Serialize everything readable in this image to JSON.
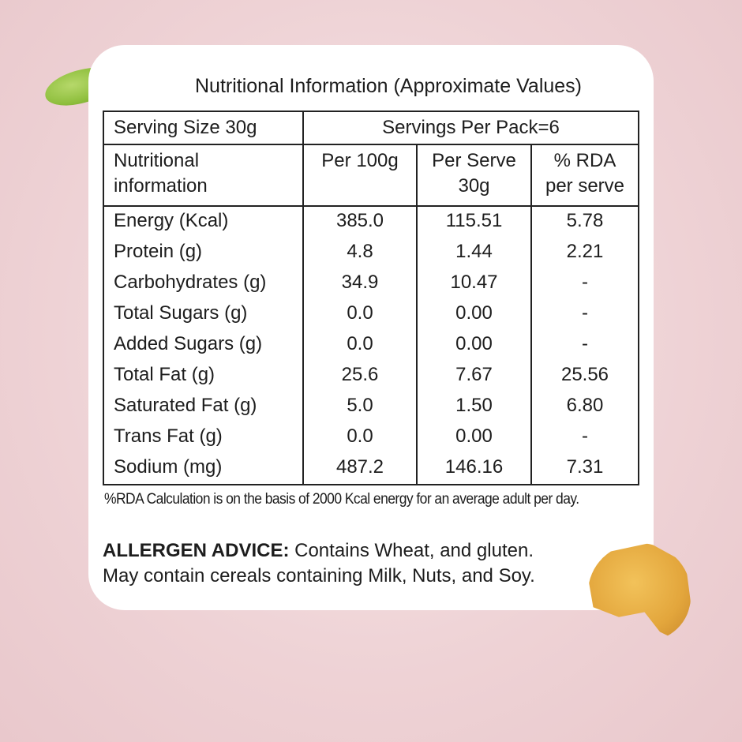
{
  "title": "Nutritional Information (Approximate Values)",
  "serving_size": "Serving Size 30g",
  "servings_per_pack": "Servings Per Pack=6",
  "headers": [
    "Nutritional information",
    "Per 100g",
    "Per Serve 30g",
    "% RDA per serve"
  ],
  "rows": [
    [
      "Energy (Kcal)",
      "385.0",
      "115.51",
      "5.78"
    ],
    [
      "Protein (g)",
      "4.8",
      "1.44",
      "2.21"
    ],
    [
      "Carbohydrates (g)",
      "34.9",
      "10.47",
      "-"
    ],
    [
      "Total  Sugars (g)",
      "0.0",
      "0.00",
      "-"
    ],
    [
      "Added Sugars (g)",
      "0.0",
      "0.00",
      "-"
    ],
    [
      "Total Fat (g)",
      "25.6",
      "7.67",
      "25.56"
    ],
    [
      "Saturated Fat (g)",
      "5.0",
      "1.50",
      "6.80"
    ],
    [
      "Trans Fat (g)",
      "0.0",
      "0.00",
      "-"
    ],
    [
      "Sodium (mg)",
      "487.2",
      "146.16",
      "7.31"
    ]
  ],
  "note": "%RDA Calculation is on the basis of 2000 Kcal energy for an average adult per day.",
  "allergen_label": "ALLERGEN ADVICE:",
  "allergen_line1": " Contains Wheat, and gluten.",
  "allergen_line2": "May contain cereals containing Milk, Nuts, and Soy.",
  "colors": {
    "background": "#eed2d5",
    "card": "#ffffff",
    "text": "#1d1d1d"
  }
}
